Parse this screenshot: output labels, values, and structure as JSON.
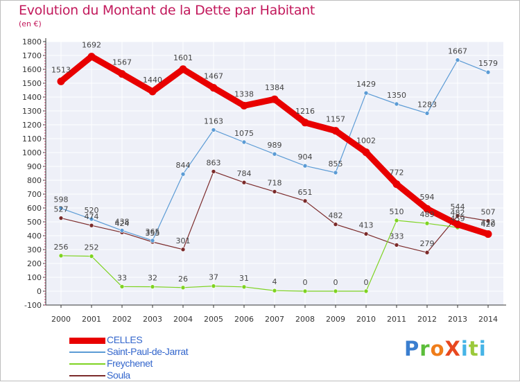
{
  "header": {
    "title": "Evolution du Montant de la Dette par Habitant",
    "unit": "(en €)"
  },
  "logo": {
    "text": "ProXiti"
  },
  "chart_data": {
    "type": "line",
    "title": "Evolution du Montant de la Dette par Habitant",
    "subtitle": "(en €)",
    "x": [
      2000,
      2001,
      2002,
      2003,
      2004,
      2005,
      2006,
      2007,
      2008,
      2009,
      2010,
      2011,
      2012,
      2013,
      2014
    ],
    "ylim": [
      -100,
      1800
    ],
    "yticks": [
      -100,
      0,
      100,
      200,
      300,
      400,
      500,
      600,
      700,
      800,
      900,
      1000,
      1100,
      1200,
      1300,
      1400,
      1500,
      1600,
      1700,
      1800
    ],
    "grid": true,
    "legend": "bottom-left",
    "series": [
      {
        "name": "CELLES",
        "color": "#e80000",
        "values": [
          1513,
          1692,
          1567,
          1440,
          1601,
          1467,
          1338,
          1384,
          1216,
          1157,
          1002,
          772,
          594,
          482,
          412
        ]
      },
      {
        "name": "Saint-Paul-de-Jarrat",
        "color": "#5b9bd5",
        "values": [
          598,
          520,
          438,
          365,
          844,
          1163,
          1075,
          989,
          904,
          855,
          1429,
          1350,
          1283,
          1667,
          1579
        ]
      },
      {
        "name": "Freychenet",
        "color": "#7ed321",
        "values": [
          256,
          252,
          33,
          32,
          26,
          37,
          31,
          4,
          0,
          0,
          0,
          510,
          489,
          459,
          420
        ]
      },
      {
        "name": "Soula",
        "color": "#7b2a2a",
        "values": [
          527,
          474,
          424,
          355,
          301,
          863,
          784,
          718,
          651,
          482,
          413,
          333,
          279,
          544,
          507
        ]
      }
    ]
  }
}
